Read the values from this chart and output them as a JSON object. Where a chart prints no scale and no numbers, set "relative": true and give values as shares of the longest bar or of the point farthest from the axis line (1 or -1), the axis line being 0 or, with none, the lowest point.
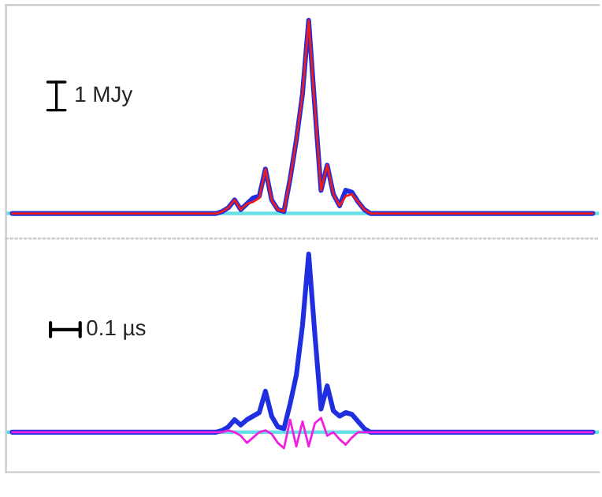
{
  "chart_data": [
    {
      "type": "line",
      "relative": true,
      "categories": [
        null,
        null,
        null,
        null,
        null,
        null,
        null,
        null,
        null,
        null,
        null,
        null,
        null,
        null,
        null,
        null,
        null,
        null,
        null,
        null,
        null,
        null,
        null,
        null,
        null,
        null,
        null,
        null,
        null,
        null,
        null,
        null,
        null,
        null,
        null,
        null,
        null,
        null,
        null,
        null,
        null,
        null,
        null,
        null,
        null,
        null,
        null,
        null,
        null,
        null,
        null,
        null,
        null,
        null,
        null,
        null,
        null,
        null,
        null,
        null,
        null,
        null,
        null,
        null,
        null,
        null,
        null,
        null,
        null,
        null,
        null,
        null,
        null,
        null,
        null,
        null,
        null,
        null,
        null,
        null,
        null,
        null,
        null,
        null,
        null,
        null,
        null,
        null,
        null,
        null,
        null,
        null,
        null,
        null,
        null
      ],
      "annotations": [
        "1 MJy"
      ],
      "ref_lines": [
        {
          "axis": "y",
          "value": 0,
          "color": "#66e0e8"
        }
      ],
      "series": [
        {
          "color": "#1f2fe0",
          "values": [
            0,
            0,
            0,
            0,
            0,
            0,
            0,
            0,
            0,
            0,
            0,
            0,
            0,
            0,
            0,
            0,
            0,
            0,
            0,
            0,
            0,
            0,
            0,
            0,
            0,
            0,
            0,
            0,
            0,
            0,
            0,
            0,
            0,
            0,
            0.01,
            0.03,
            0.07,
            0.02,
            0.05,
            0.08,
            0.09,
            0.23,
            0.07,
            0.02,
            0.01,
            0.18,
            0.38,
            0.62,
            1.0,
            0.55,
            0.12,
            0.25,
            0.1,
            0.04,
            0.12,
            0.11,
            0.06,
            0.02,
            0,
            0,
            0,
            0,
            0,
            0,
            0,
            0,
            0,
            0,
            0,
            0,
            0,
            0,
            0,
            0,
            0,
            0,
            0,
            0,
            0,
            0,
            0,
            0,
            0,
            0,
            0,
            0,
            0,
            0,
            0,
            0,
            0,
            0,
            0,
            0,
            0
          ]
        },
        {
          "color": "#f01c1c",
          "values": [
            0,
            0,
            0,
            0,
            0,
            0,
            0,
            0,
            0,
            0,
            0,
            0,
            0,
            0,
            0,
            0,
            0,
            0,
            0,
            0,
            0,
            0,
            0,
            0,
            0,
            0,
            0,
            0,
            0,
            0,
            0,
            0,
            0,
            0,
            0.01,
            0.03,
            0.07,
            0.02,
            0.05,
            0.06,
            0.08,
            0.23,
            0.07,
            0.02,
            0.01,
            0.18,
            0.38,
            0.62,
            1.0,
            0.55,
            0.12,
            0.25,
            0.1,
            0.04,
            0.09,
            0.1,
            0.06,
            0.02,
            0,
            0,
            0,
            0,
            0,
            0,
            0,
            0,
            0,
            0,
            0,
            0,
            0,
            0,
            0,
            0,
            0,
            0,
            0,
            0,
            0,
            0,
            0,
            0,
            0,
            0,
            0,
            0,
            0,
            0,
            0,
            0,
            0,
            0,
            0,
            0,
            0
          ]
        }
      ]
    },
    {
      "type": "line",
      "relative": true,
      "categories": [
        null,
        null,
        null,
        null,
        null,
        null,
        null,
        null,
        null,
        null,
        null,
        null,
        null,
        null,
        null,
        null,
        null,
        null,
        null,
        null,
        null,
        null,
        null,
        null,
        null,
        null,
        null,
        null,
        null,
        null,
        null,
        null,
        null,
        null,
        null,
        null,
        null,
        null,
        null,
        null,
        null,
        null,
        null,
        null,
        null,
        null,
        null,
        null,
        null,
        null,
        null,
        null,
        null,
        null,
        null,
        null,
        null,
        null,
        null,
        null,
        null,
        null,
        null,
        null,
        null,
        null,
        null,
        null,
        null,
        null,
        null,
        null,
        null,
        null,
        null,
        null,
        null,
        null,
        null,
        null,
        null,
        null,
        null,
        null,
        null,
        null,
        null,
        null,
        null,
        null,
        null,
        null,
        null,
        null,
        null
      ],
      "annotations": [
        "0.1 µs"
      ],
      "ref_lines": [
        {
          "axis": "y",
          "value": 0,
          "color": "#66e0e8"
        }
      ],
      "series": [
        {
          "color": "#1f2fe0",
          "values": [
            0,
            0,
            0,
            0,
            0,
            0,
            0,
            0,
            0,
            0,
            0,
            0,
            0,
            0,
            0,
            0,
            0,
            0,
            0,
            0,
            0,
            0,
            0,
            0,
            0,
            0,
            0,
            0,
            0,
            0,
            0,
            0,
            0,
            0,
            0.01,
            0.03,
            0.07,
            0.04,
            0.07,
            0.09,
            0.11,
            0.23,
            0.09,
            0.03,
            0.02,
            0.16,
            0.32,
            0.6,
            1.0,
            0.55,
            0.13,
            0.26,
            0.12,
            0.09,
            0.11,
            0.1,
            0.06,
            0.02,
            0,
            0,
            0,
            0,
            0,
            0,
            0,
            0,
            0,
            0,
            0,
            0,
            0,
            0,
            0,
            0,
            0,
            0,
            0,
            0,
            0,
            0,
            0,
            0,
            0,
            0,
            0,
            0,
            0,
            0,
            0,
            0,
            0,
            0,
            0,
            0,
            0
          ]
        },
        {
          "color": "#f020e0",
          "values": [
            0,
            0,
            0,
            0,
            0,
            0,
            0,
            0,
            0,
            0,
            0,
            0,
            0,
            0,
            0,
            0,
            0,
            0,
            0,
            0,
            0,
            0,
            0,
            0,
            0,
            0,
            0,
            0,
            0,
            0,
            0,
            0,
            0,
            0,
            0,
            0.01,
            0,
            -0.02,
            -0.06,
            -0.03,
            0.0,
            0.01,
            -0.01,
            -0.06,
            -0.09,
            0.07,
            -0.08,
            0.06,
            -0.08,
            0.05,
            0.08,
            -0.02,
            0.0,
            -0.04,
            -0.07,
            -0.03,
            0,
            0.0,
            0,
            0,
            0,
            0,
            0,
            0,
            0,
            0,
            0,
            0,
            0,
            0,
            0,
            0,
            0,
            0,
            0,
            0,
            0,
            0,
            0,
            0,
            0,
            0,
            0,
            0,
            0,
            0,
            0,
            0,
            0,
            0,
            0,
            0,
            0,
            0,
            0
          ]
        }
      ]
    }
  ]
}
